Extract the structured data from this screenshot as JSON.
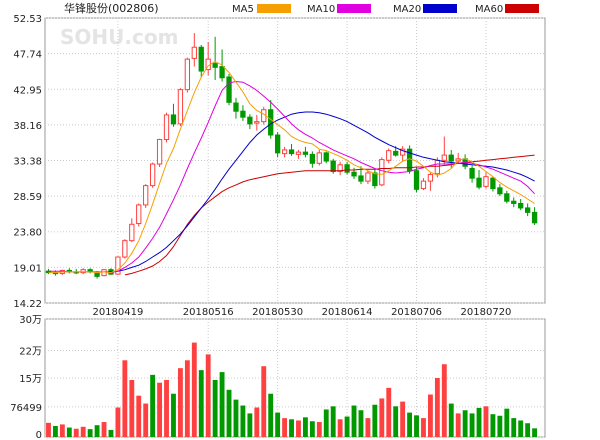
{
  "colors": {
    "up": "#ff4040",
    "down": "#009900",
    "ma5": "#f5a000",
    "ma10": "#e000e0",
    "ma20": "#0000cc",
    "ma60": "#cc0000",
    "grid": "#cccccc",
    "frame": "#999999",
    "text": "#222222"
  },
  "chart_data": {
    "type": "candlestick",
    "title": "华锋股份(002806)",
    "watermark": "SOHU.com",
    "legend": [
      {
        "label": "MA5",
        "color": "#f5a000"
      },
      {
        "label": "MA10",
        "color": "#e000e0"
      },
      {
        "label": "MA20",
        "color": "#0000cc"
      },
      {
        "label": "MA60",
        "color": "#cc0000"
      }
    ],
    "price_ticks": [
      "52.53",
      "47.74",
      "42.95",
      "38.16",
      "33.38",
      "28.59",
      "23.80",
      "19.01",
      "14.22"
    ],
    "price_range": [
      14.22,
      52.53
    ],
    "date_ticks": [
      {
        "label": "20180419",
        "index": 10
      },
      {
        "label": "20180516",
        "index": 23
      },
      {
        "label": "20180530",
        "index": 33
      },
      {
        "label": "20180614",
        "index": 43
      },
      {
        "label": "20180706",
        "index": 53
      },
      {
        "label": "20180720",
        "index": 63
      }
    ],
    "volume_ticks": [
      {
        "label": "30万",
        "value": 300000
      },
      {
        "label": "22万",
        "value": 220000
      },
      {
        "label": "15万",
        "value": 150000
      },
      {
        "label": "76499",
        "value": 76499
      },
      {
        "label": "0",
        "value": 0
      }
    ],
    "volume_range": [
      0,
      300000
    ],
    "ohlc": [
      [
        18.5,
        18.8,
        18.1,
        18.3
      ],
      [
        18.3,
        18.6,
        17.9,
        18.2
      ],
      [
        18.2,
        18.7,
        18.0,
        18.6
      ],
      [
        18.6,
        18.9,
        18.2,
        18.4
      ],
      [
        18.4,
        18.8,
        18.1,
        18.3
      ],
      [
        18.3,
        18.9,
        18.1,
        18.7
      ],
      [
        18.7,
        18.9,
        18.2,
        18.4
      ],
      [
        18.3,
        18.5,
        17.5,
        17.8
      ],
      [
        17.9,
        18.8,
        17.8,
        18.7
      ],
      [
        18.7,
        18.9,
        18.0,
        18.1
      ],
      [
        18.1,
        20.5,
        18.0,
        20.4
      ],
      [
        20.4,
        22.8,
        20.2,
        22.6
      ],
      [
        22.6,
        25.6,
        22.4,
        24.8
      ],
      [
        24.9,
        27.6,
        24.5,
        27.4
      ],
      [
        27.4,
        30.2,
        27.0,
        30.0
      ],
      [
        30.0,
        33.1,
        29.7,
        32.9
      ],
      [
        32.9,
        36.3,
        32.5,
        36.2
      ],
      [
        36.2,
        39.8,
        35.8,
        39.5
      ],
      [
        39.5,
        41.0,
        37.9,
        38.3
      ],
      [
        38.3,
        43.1,
        38.0,
        42.9
      ],
      [
        42.9,
        47.2,
        42.5,
        47.0
      ],
      [
        47.1,
        50.5,
        46.0,
        48.6
      ],
      [
        48.6,
        48.9,
        44.6,
        45.4
      ],
      [
        45.6,
        49.3,
        44.8,
        47.0
      ],
      [
        46.4,
        50.0,
        44.2,
        45.9
      ],
      [
        46.0,
        48.3,
        44.0,
        44.5
      ],
      [
        44.6,
        45.0,
        40.8,
        41.2
      ],
      [
        41.1,
        41.8,
        39.0,
        40.0
      ],
      [
        40.0,
        40.8,
        38.7,
        39.2
      ],
      [
        39.2,
        39.6,
        37.6,
        38.3
      ],
      [
        38.4,
        39.5,
        37.4,
        38.6
      ],
      [
        38.6,
        40.6,
        38.2,
        40.2
      ],
      [
        40.2,
        41.5,
        36.3,
        36.8
      ],
      [
        36.8,
        37.2,
        33.8,
        34.4
      ],
      [
        34.3,
        35.2,
        33.8,
        34.8
      ],
      [
        34.8,
        35.6,
        34.0,
        34.3
      ],
      [
        34.2,
        34.8,
        33.6,
        34.5
      ],
      [
        34.5,
        35.2,
        33.8,
        34.2
      ],
      [
        34.2,
        34.6,
        32.4,
        33.0
      ],
      [
        33.0,
        34.8,
        32.7,
        34.4
      ],
      [
        34.4,
        34.6,
        33.0,
        33.3
      ],
      [
        33.3,
        33.6,
        31.6,
        31.9
      ],
      [
        31.9,
        33.2,
        31.4,
        32.8
      ],
      [
        32.8,
        33.2,
        31.5,
        31.8
      ],
      [
        31.8,
        32.4,
        30.9,
        31.3
      ],
      [
        31.3,
        32.6,
        30.2,
        30.6
      ],
      [
        30.6,
        32.0,
        30.2,
        31.7
      ],
      [
        31.7,
        32.2,
        29.6,
        30.0
      ],
      [
        30.1,
        33.8,
        29.9,
        33.5
      ],
      [
        33.4,
        35.0,
        33.0,
        34.7
      ],
      [
        34.6,
        35.3,
        33.9,
        34.1
      ],
      [
        34.1,
        35.3,
        33.2,
        34.9
      ],
      [
        34.9,
        35.4,
        31.6,
        32.0
      ],
      [
        32.0,
        32.5,
        29.1,
        29.5
      ],
      [
        29.6,
        31.0,
        29.4,
        30.6
      ],
      [
        30.6,
        31.8,
        29.3,
        31.5
      ],
      [
        31.6,
        33.8,
        31.1,
        33.4
      ],
      [
        33.4,
        36.6,
        32.8,
        34.1
      ],
      [
        34.1,
        34.8,
        32.4,
        33.3
      ],
      [
        33.3,
        34.4,
        32.9,
        33.6
      ],
      [
        33.6,
        34.2,
        32.2,
        32.6
      ],
      [
        32.3,
        32.7,
        30.4,
        31.0
      ],
      [
        31.0,
        32.1,
        29.5,
        29.8
      ],
      [
        29.9,
        31.8,
        29.6,
        31.2
      ],
      [
        31.0,
        31.2,
        29.2,
        29.6
      ],
      [
        29.7,
        30.2,
        28.6,
        28.9
      ],
      [
        28.9,
        29.3,
        27.6,
        27.9
      ],
      [
        27.9,
        28.4,
        27.1,
        27.6
      ],
      [
        27.6,
        28.2,
        26.7,
        27.0
      ],
      [
        27.0,
        27.6,
        25.9,
        26.4
      ],
      [
        26.4,
        27.1,
        24.7,
        25.0
      ]
    ],
    "volume": [
      [
        36000,
        1
      ],
      [
        28000,
        0
      ],
      [
        32000,
        1
      ],
      [
        24000,
        0
      ],
      [
        21000,
        1
      ],
      [
        26000,
        1
      ],
      [
        20000,
        0
      ],
      [
        30000,
        0
      ],
      [
        38000,
        1
      ],
      [
        18000,
        0
      ],
      [
        75000,
        1
      ],
      [
        195000,
        1
      ],
      [
        145000,
        1
      ],
      [
        105000,
        1
      ],
      [
        85000,
        1
      ],
      [
        158000,
        0
      ],
      [
        138000,
        1
      ],
      [
        145000,
        1
      ],
      [
        110000,
        0
      ],
      [
        175000,
        1
      ],
      [
        195000,
        1
      ],
      [
        240000,
        1
      ],
      [
        170000,
        0
      ],
      [
        210000,
        1
      ],
      [
        145000,
        0
      ],
      [
        165000,
        0
      ],
      [
        120000,
        0
      ],
      [
        95000,
        0
      ],
      [
        80000,
        0
      ],
      [
        60000,
        0
      ],
      [
        75000,
        1
      ],
      [
        180000,
        1
      ],
      [
        110000,
        0
      ],
      [
        62000,
        0
      ],
      [
        48000,
        1
      ],
      [
        45000,
        0
      ],
      [
        42000,
        1
      ],
      [
        50000,
        0
      ],
      [
        40000,
        0
      ],
      [
        38000,
        1
      ],
      [
        70000,
        0
      ],
      [
        78000,
        0
      ],
      [
        45000,
        1
      ],
      [
        52000,
        0
      ],
      [
        80000,
        0
      ],
      [
        68000,
        0
      ],
      [
        48000,
        1
      ],
      [
        82000,
        0
      ],
      [
        98000,
        1
      ],
      [
        125000,
        1
      ],
      [
        78000,
        0
      ],
      [
        90000,
        1
      ],
      [
        62000,
        0
      ],
      [
        55000,
        0
      ],
      [
        48000,
        1
      ],
      [
        108000,
        1
      ],
      [
        150000,
        1
      ],
      [
        185000,
        1
      ],
      [
        85000,
        0
      ],
      [
        60000,
        1
      ],
      [
        68000,
        0
      ],
      [
        60000,
        0
      ],
      [
        74000,
        0
      ],
      [
        78000,
        1
      ],
      [
        58000,
        0
      ],
      [
        54000,
        0
      ],
      [
        72000,
        0
      ],
      [
        48000,
        0
      ],
      [
        42000,
        0
      ],
      [
        35000,
        0
      ],
      [
        22000,
        0
      ]
    ],
    "ma5": [
      18.3,
      18.3,
      18.4,
      18.4,
      18.4,
      18.4,
      18.4,
      18.3,
      18.4,
      18.3,
      18.7,
      19.6,
      20.9,
      22.6,
      24.9,
      27.5,
      30.3,
      33.0,
      35.0,
      37.6,
      40.1,
      42.5,
      44.6,
      46.1,
      46.7,
      46.2,
      45.2,
      43.9,
      42.6,
      41.0,
      40.1,
      39.6,
      38.9,
      38.2,
      37.5,
      36.6,
      36.1,
      35.8,
      35.6,
      34.9,
      34.7,
      34.3,
      33.9,
      33.4,
      32.8,
      32.4,
      32.0,
      31.6,
      31.5,
      32.0,
      32.6,
      33.3,
      33.6,
      33.3,
      32.6,
      31.8,
      31.4,
      31.7,
      32.3,
      33.4,
      33.6,
      33.2,
      32.6,
      31.9,
      31.2,
      30.4,
      29.8,
      29.3,
      28.8,
      28.2,
      27.6
    ],
    "ma10": [
      18.5,
      18.5,
      18.5,
      18.4,
      18.4,
      18.4,
      18.4,
      18.4,
      18.4,
      18.3,
      18.5,
      19.0,
      19.6,
      20.4,
      21.6,
      22.9,
      24.4,
      26.2,
      28.1,
      30.1,
      32.3,
      34.4,
      36.4,
      38.5,
      40.7,
      42.8,
      43.8,
      44.0,
      43.9,
      43.4,
      42.8,
      42.0,
      41.2,
      40.3,
      39.3,
      38.3,
      37.5,
      36.9,
      36.4,
      35.8,
      35.3,
      34.8,
      34.4,
      34.0,
      33.6,
      33.1,
      32.7,
      32.3,
      32.0,
      31.8,
      31.7,
      31.8,
      31.9,
      32.2,
      32.4,
      32.7,
      32.9,
      32.9,
      32.9,
      33.0,
      33.1,
      33.0,
      32.8,
      32.5,
      32.2,
      31.8,
      31.4,
      31.0,
      30.6,
      29.9,
      28.9
    ],
    "ma20": [
      null,
      null,
      null,
      null,
      null,
      null,
      null,
      null,
      18.4,
      18.4,
      18.5,
      18.7,
      19.0,
      19.3,
      19.8,
      20.4,
      21.0,
      21.7,
      22.6,
      23.5,
      24.6,
      25.8,
      27.0,
      28.2,
      29.5,
      30.9,
      32.2,
      33.4,
      34.6,
      35.8,
      36.8,
      37.6,
      38.3,
      38.8,
      39.2,
      39.6,
      39.8,
      39.9,
      39.9,
      39.8,
      39.6,
      39.3,
      39.0,
      38.6,
      38.1,
      37.6,
      37.1,
      36.5,
      36.0,
      35.5,
      35.1,
      34.7,
      34.4,
      34.1,
      33.8,
      33.6,
      33.4,
      33.2,
      33.1,
      33.0,
      32.9,
      32.8,
      32.7,
      32.6,
      32.5,
      32.3,
      32.1,
      31.8,
      31.5,
      31.1,
      30.6
    ],
    "ma60": [
      null,
      null,
      null,
      null,
      null,
      null,
      null,
      null,
      null,
      null,
      null,
      18.0,
      18.2,
      18.5,
      18.8,
      19.2,
      19.8,
      20.6,
      21.8,
      23.3,
      24.8,
      26.0,
      27.0,
      27.8,
      28.5,
      29.2,
      29.7,
      30.1,
      30.5,
      30.8,
      31.0,
      31.2,
      31.4,
      31.6,
      31.7,
      31.8,
      31.9,
      32.0,
      32.0,
      32.0,
      32.0,
      32.0,
      32.0,
      32.1,
      32.1,
      32.2,
      32.2,
      32.2,
      32.3,
      32.3,
      32.4,
      32.4,
      32.4,
      32.5,
      32.5,
      32.6,
      32.6,
      32.7,
      32.8,
      33.0,
      33.1,
      33.2,
      33.3,
      33.4,
      33.5,
      33.6,
      33.7,
      33.8,
      33.9,
      34.0,
      34.1
    ]
  }
}
